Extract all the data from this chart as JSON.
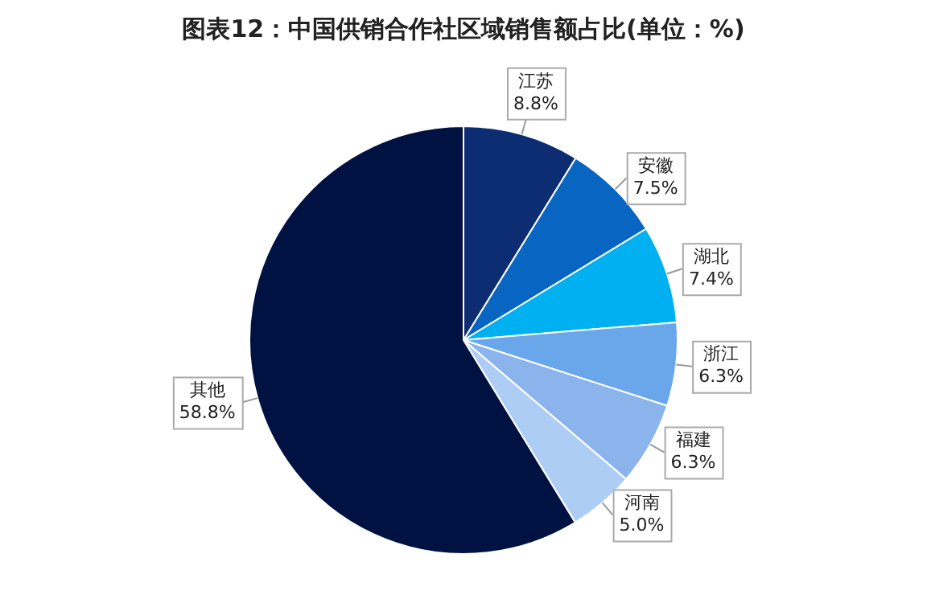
{
  "chart_data": {
    "type": "pie",
    "title": "图表12：中国供销合作社区域销售额占比(单位：%)",
    "categories": [
      "江苏",
      "安徽",
      "湖北",
      "浙江",
      "福建",
      "河南",
      "其他"
    ],
    "values": [
      8.8,
      7.5,
      7.4,
      6.3,
      6.3,
      5.0,
      58.8
    ],
    "value_labels": [
      "8.8%",
      "7.5%",
      "7.4%",
      "6.3%",
      "6.3%",
      "5.0%",
      "58.8%"
    ],
    "colors": [
      "#0c2d72",
      "#0866c2",
      "#00b0f0",
      "#6aa6ea",
      "#8bb3ec",
      "#aecdf5",
      "#001241"
    ],
    "legend": false
  }
}
